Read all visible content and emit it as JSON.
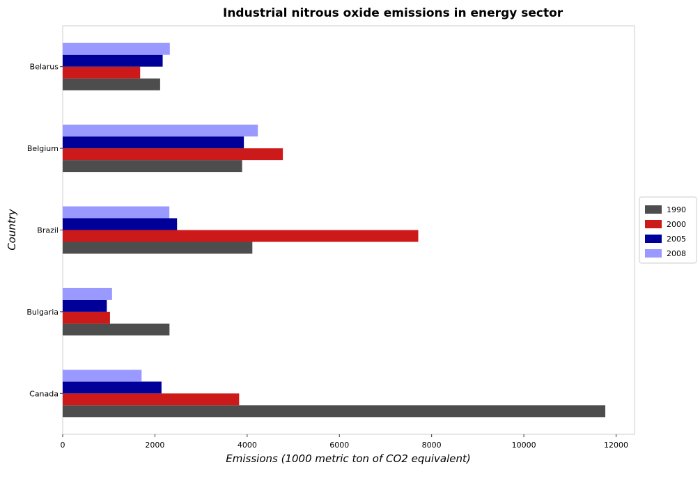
{
  "chart_data": {
    "type": "bar",
    "orientation": "horizontal",
    "title": "Industrial nitrous oxide emissions in energy sector",
    "xlabel": "Emissions (1000 metric ton of CO2 equivalent)",
    "ylabel": "Country",
    "categories": [
      "Belarus",
      "Belgium",
      "Brazil",
      "Bulgaria",
      "Canada"
    ],
    "series": [
      {
        "name": "1990",
        "color": "#4d4d4d",
        "values": [
          2113,
          3891,
          4113,
          2316,
          11766
        ]
      },
      {
        "name": "2000",
        "color": "#cc1a1a",
        "values": [
          1680,
          4774,
          7710,
          1026,
          3826
        ]
      },
      {
        "name": "2005",
        "color": "#000099",
        "values": [
          2168,
          3929,
          2480,
          957,
          2143
        ]
      },
      {
        "name": "2008",
        "color": "#9999ff",
        "values": [
          2323,
          4232,
          2313,
          1070,
          1711
        ]
      }
    ],
    "xlim": [
      0,
      12400
    ],
    "xticks": [
      0,
      2000,
      4000,
      6000,
      8000,
      10000,
      12000
    ],
    "xtick_labels": [
      "0",
      "2000",
      "4000",
      "6000",
      "8000",
      "10000",
      "12000"
    ],
    "legend_position": "right",
    "grid": false
  }
}
